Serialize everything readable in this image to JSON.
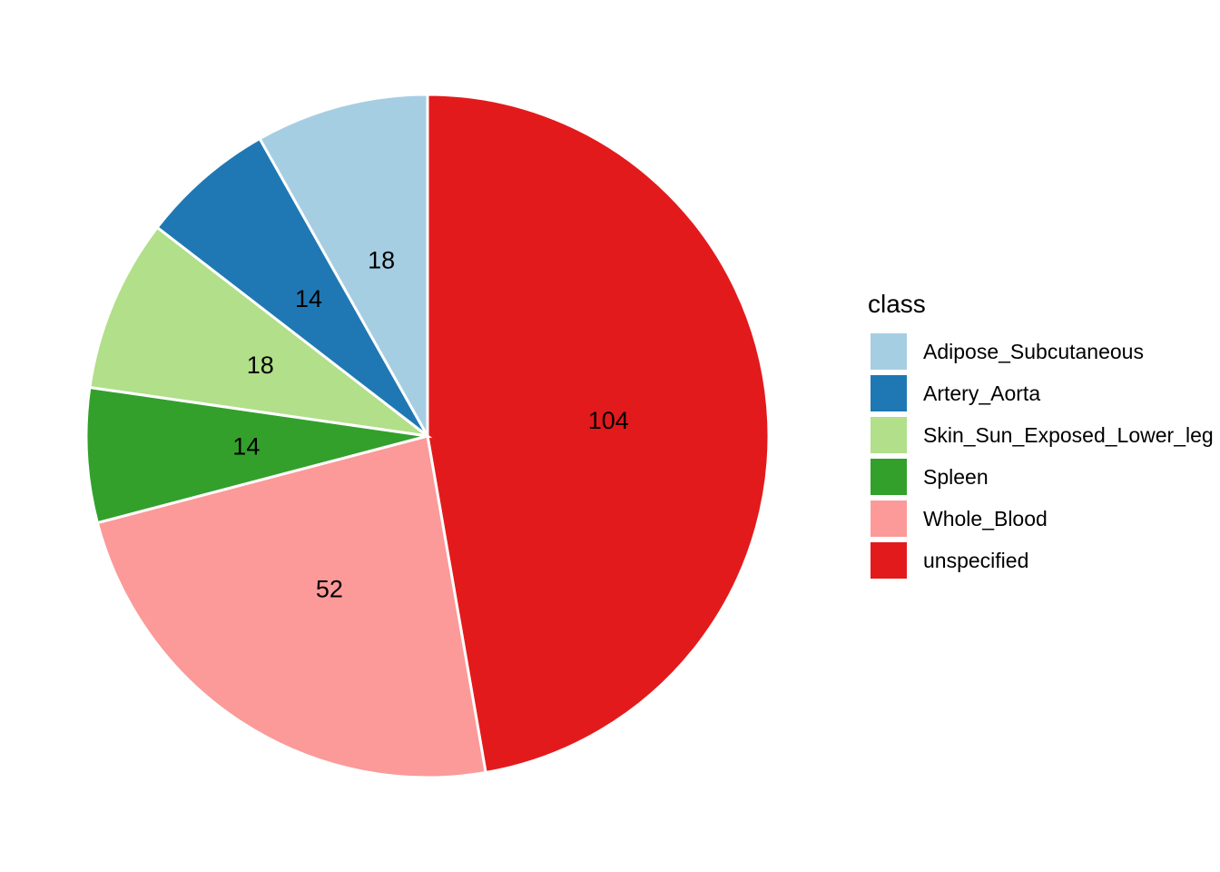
{
  "chart_data": {
    "type": "pie",
    "legend_title": "class",
    "legend_position": "right",
    "direction": "clockwise from top",
    "categories": [
      "Adipose_Subcutaneous",
      "Artery_Aorta",
      "Skin_Sun_Exposed_Lower_leg",
      "Spleen",
      "Whole_Blood",
      "unspecified"
    ],
    "values": [
      18,
      14,
      18,
      14,
      52,
      104
    ],
    "colors": [
      "#a6cee3",
      "#1f78b4",
      "#b2df8a",
      "#33a02c",
      "#fb9a99",
      "#e31a1c"
    ]
  }
}
